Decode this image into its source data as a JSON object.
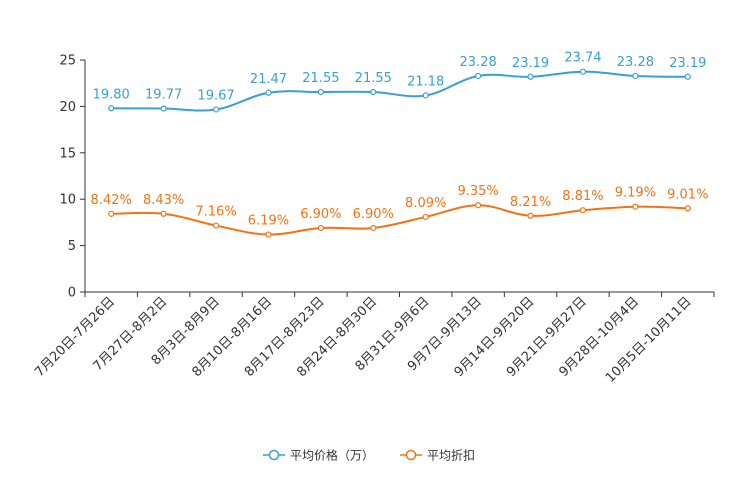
{
  "chart_data": {
    "type": "line",
    "title": "",
    "xlabel": "",
    "ylabel": "",
    "ylim": [
      0,
      25
    ],
    "yticks": [
      0,
      5,
      10,
      15,
      20,
      25
    ],
    "grid": false,
    "legend_position": "bottom-center",
    "categories": [
      "7月20日-7月26日",
      "7月27日-8月2日",
      "8月3日-8月9日",
      "8月10日-8月16日",
      "8月17日-8月23日",
      "8月24日-8月30日",
      "8月31日-9月6日",
      "9月7日-9月13日",
      "9月14日-9月20日",
      "9月21日-9月27日",
      "9月28日-10月4日",
      "10月5日-10月11日"
    ],
    "series": [
      {
        "name": "平均价格（万）",
        "color": "#3a9fd1",
        "values": [
          19.8,
          19.77,
          19.67,
          21.47,
          21.55,
          21.55,
          21.18,
          23.28,
          23.19,
          23.74,
          23.28,
          23.19
        ],
        "labels": [
          "19.80",
          "19.77",
          "19.67",
          "21.47",
          "21.55",
          "21.55",
          "21.18",
          "23.28",
          "23.19",
          "23.74",
          "23.28",
          "23.19"
        ]
      },
      {
        "name": "平均折扣",
        "color": "#ef7415",
        "values": [
          8.42,
          8.43,
          7.16,
          6.19,
          6.9,
          6.9,
          8.09,
          9.35,
          8.21,
          8.81,
          9.19,
          9.01
        ],
        "labels": [
          "8.42%",
          "8.43%",
          "7.16%",
          "6.19%",
          "6.90%",
          "6.90%",
          "8.09%",
          "9.35%",
          "8.21%",
          "8.81%",
          "9.19%",
          "9.01%"
        ]
      }
    ]
  }
}
